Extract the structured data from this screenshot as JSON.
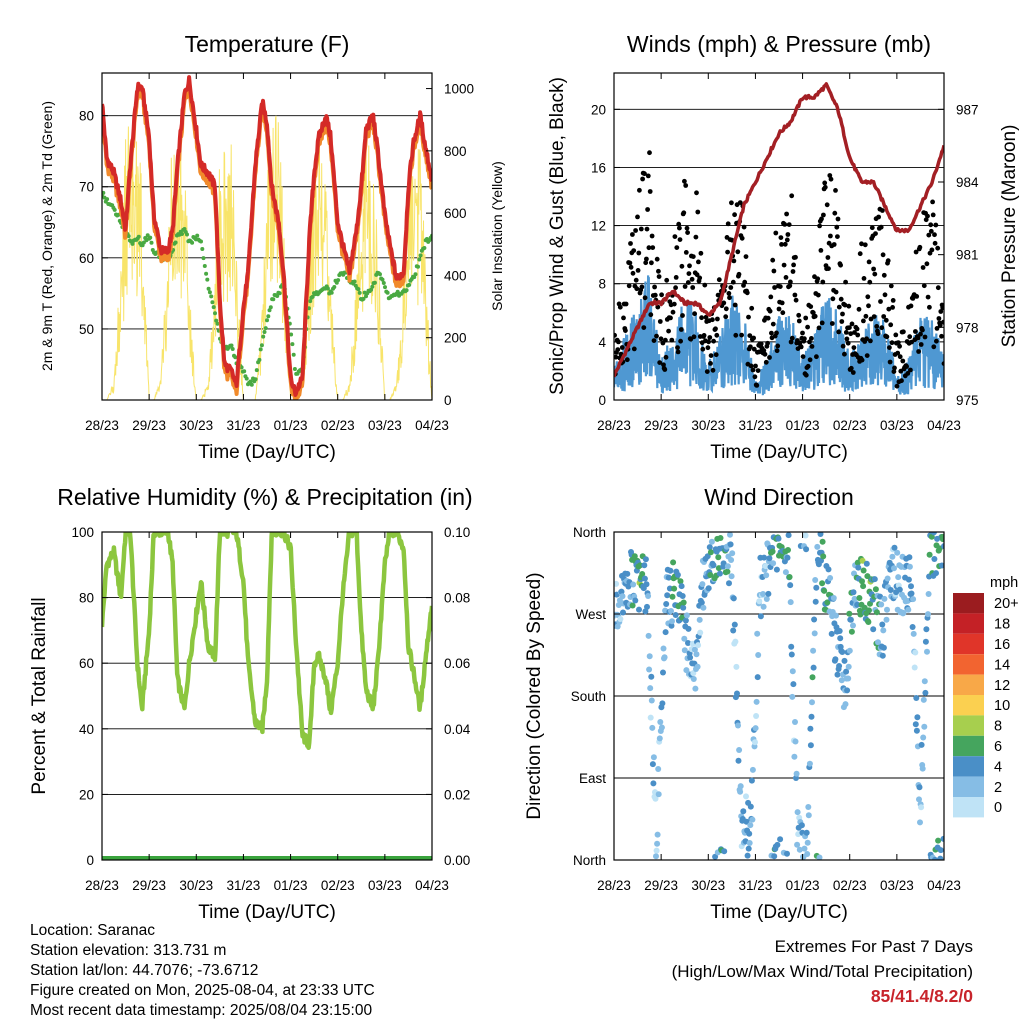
{
  "x_tick_labels": [
    "28/23",
    "29/23",
    "30/23",
    "31/23",
    "01/23",
    "02/23",
    "03/23",
    "04/23"
  ],
  "x_axis_label": "Time (Day/UTC)",
  "panels": {
    "temperature": {
      "title": "Temperature (F)",
      "ylabel_left": "2m & 9m T (Red, Orange) & 2m Td (Green)",
      "ylabel_right": "Solar Insolation (Yellow)",
      "left_ticks": [
        "50",
        "60",
        "70",
        "80"
      ],
      "right_ticks": [
        "0",
        "200",
        "400",
        "600",
        "800",
        "1000"
      ]
    },
    "winds": {
      "title": "Winds (mph) & Pressure (mb)",
      "ylabel_left": "Sonic/Prop Wind & Gust (Blue, Black)",
      "ylabel_right": "Station Pressure (Maroon)",
      "left_ticks": [
        "0",
        "4",
        "8",
        "12",
        "16",
        "20"
      ],
      "right_ticks": [
        "975",
        "978",
        "981",
        "984",
        "987"
      ]
    },
    "humidity": {
      "title": "Relative Humidity (%) & Precipitation (in)",
      "ylabel_left": "Percent & Total Rainfall",
      "left_ticks": [
        "0",
        "20",
        "40",
        "60",
        "80",
        "100"
      ],
      "right_ticks": [
        "0.00",
        "0.02",
        "0.04",
        "0.06",
        "0.08",
        "0.10"
      ]
    },
    "direction": {
      "title": "Wind Direction",
      "ylabel_left": "Direction (Colored By Speed)",
      "left_ticks": [
        "North",
        "East",
        "South",
        "West",
        "North"
      ]
    }
  },
  "legend": {
    "title": "mph",
    "labels": [
      "20+",
      "18",
      "16",
      "14",
      "12",
      "10",
      "8",
      "6",
      "4",
      "2",
      "0"
    ],
    "colors": [
      "#9b1c1f",
      "#c42126",
      "#e03529",
      "#f26430",
      "#f8a848",
      "#fbd050",
      "#a7cf4e",
      "#45a55e",
      "#4a8fc7",
      "#86bde5",
      "#bfe3f6"
    ]
  },
  "info": {
    "location": "Location: Saranac",
    "elevation": "Station elevation: 313.731 m",
    "latlon": "Station lat/lon: 44.7076; -73.6712",
    "created": "Figure created on Mon, 2025-08-04, at 23:33 UTC",
    "recent": "Most recent data timestamp: 2025/08/04 23:15:00"
  },
  "extremes": {
    "line1": "Extremes For Past 7 Days",
    "line2": "(High/Low/Max Wind/Total Precipitation)",
    "values": "85/41.4/8.2/0"
  },
  "colors": {
    "temp_2m": "#d42a27",
    "temp_9m": "#f18a2b",
    "dewpoint": "#49a942",
    "solar": "#f8e46a",
    "wind": "#4f98d2",
    "gust": "#000000",
    "pressure": "#a31f24",
    "humidity": "#8cc63f",
    "precip": "#3aa43d"
  },
  "chart_data": [
    {
      "type": "line",
      "title": "Temperature (F)",
      "xlabel": "Time (Day/UTC)",
      "ylabel": "2m & 9m T (Red, Orange) & 2m Td (Green)",
      "ylabel_right": "Solar Insolation (Yellow)",
      "ylim": [
        40,
        86
      ],
      "ylim_right": [
        0,
        1050
      ],
      "x": [
        0,
        0.1,
        0.25,
        0.4,
        0.5,
        0.6,
        0.75,
        0.85,
        1.0,
        1.1,
        1.25,
        1.4,
        1.5,
        1.6,
        1.75,
        1.85,
        2.0,
        2.1,
        2.25,
        2.4,
        2.5,
        2.6,
        2.75,
        2.85,
        3.0,
        3.1,
        3.25,
        3.4,
        3.5,
        3.6,
        3.75,
        3.85,
        4.0,
        4.1,
        4.25,
        4.4,
        4.5,
        4.6,
        4.75,
        4.85,
        5.0,
        5.1,
        5.25,
        5.4,
        5.5,
        5.6,
        5.75,
        5.85,
        6.0,
        6.1,
        6.25,
        6.4,
        6.5,
        6.6,
        6.75,
        6.85,
        7.0
      ],
      "series": [
        {
          "name": "2m & 9m T (Red, Orange)",
          "values": [
            82,
            74,
            72,
            68,
            64,
            73,
            84,
            84,
            77,
            66,
            61,
            61,
            64,
            73,
            83,
            85,
            78,
            73,
            72,
            70,
            54,
            45,
            44,
            42,
            53,
            58,
            73,
            82,
            79,
            70,
            65,
            58,
            43,
            41,
            43,
            63,
            72,
            77,
            80,
            77,
            65,
            62,
            58,
            64,
            70,
            78,
            80,
            75,
            66,
            62,
            57,
            58,
            70,
            76,
            80,
            76,
            71
          ]
        },
        {
          "name": "2m Td (Green)",
          "values": [
            69,
            68,
            67,
            65,
            64,
            62,
            63,
            62,
            63,
            61,
            60,
            60,
            61,
            63,
            64,
            62,
            63,
            62,
            56,
            52,
            49,
            47,
            48,
            45,
            44,
            42,
            43,
            48,
            51,
            54,
            55,
            57,
            50,
            44,
            44,
            54,
            55,
            55,
            56,
            55,
            57,
            58,
            57,
            56,
            54,
            55,
            56,
            58,
            56,
            54,
            55,
            55,
            56,
            57,
            60,
            62,
            63
          ]
        },
        {
          "name": "Solar Insolation (Yellow)",
          "values": [
            0,
            0,
            60,
            500,
            850,
            950,
            900,
            700,
            0,
            0,
            80,
            500,
            900,
            980,
            800,
            400,
            0,
            0,
            60,
            400,
            800,
            900,
            850,
            500,
            0,
            0,
            0,
            300,
            700,
            1000,
            900,
            600,
            0,
            0,
            80,
            500,
            800,
            900,
            700,
            400,
            0,
            0,
            60,
            400,
            750,
            900,
            800,
            500,
            0,
            0,
            60,
            400,
            750,
            900,
            800,
            500,
            0
          ]
        }
      ]
    },
    {
      "type": "line",
      "title": "Winds (mph) & Pressure (mb)",
      "xlabel": "Time (Day/UTC)",
      "ylabel": "Sonic/Prop Wind & Gust (Blue, Black)",
      "ylabel_right": "Station Pressure (Maroon)",
      "ylim": [
        0,
        22.5
      ],
      "ylim_right": [
        975,
        988.5
      ],
      "x": [
        0,
        0.25,
        0.5,
        0.75,
        1.0,
        1.25,
        1.5,
        1.75,
        2.0,
        2.25,
        2.5,
        2.75,
        3.0,
        3.25,
        3.5,
        3.75,
        4.0,
        4.25,
        4.5,
        4.75,
        5.0,
        5.25,
        5.5,
        5.75,
        6.0,
        6.25,
        6.5,
        6.75,
        7.0
      ],
      "series": [
        {
          "name": "Sonic/Prop Wind (Blue)",
          "values": [
            2,
            3,
            5,
            6,
            2,
            3,
            5,
            4,
            2,
            3,
            5,
            4,
            1,
            2,
            4,
            4,
            2,
            3,
            5,
            4,
            2,
            3,
            4,
            4,
            1,
            2,
            4,
            4,
            2
          ]
        },
        {
          "name": "Gust (Black)",
          "values": [
            4,
            8,
            12,
            15,
            6,
            9,
            13,
            12,
            5,
            8,
            13,
            11,
            3,
            6,
            11,
            13,
            4,
            8,
            14,
            12,
            5,
            9,
            10,
            12,
            3,
            6,
            10,
            13,
            6
          ]
        },
        {
          "name": "Station Pressure (Maroon)",
          "values": [
            976,
            977,
            978,
            979,
            979,
            979.5,
            979,
            979,
            978.5,
            979,
            981,
            983,
            984,
            985,
            986,
            986.5,
            987.5,
            987.5,
            988,
            987,
            985,
            984,
            984,
            983,
            982,
            982,
            983,
            984,
            985.5
          ]
        }
      ]
    },
    {
      "type": "line",
      "title": "Relative Humidity (%) & Precipitation (in)",
      "xlabel": "Time (Day/UTC)",
      "ylabel": "Percent & Total Rainfall",
      "ylim": [
        0,
        100
      ],
      "ylim_right": [
        0,
        0.1
      ],
      "x": [
        0,
        0.1,
        0.25,
        0.4,
        0.5,
        0.6,
        0.75,
        0.85,
        1.0,
        1.1,
        1.25,
        1.4,
        1.5,
        1.6,
        1.75,
        1.85,
        2.0,
        2.1,
        2.25,
        2.4,
        2.5,
        2.6,
        2.75,
        2.85,
        3.0,
        3.1,
        3.25,
        3.4,
        3.5,
        3.6,
        3.75,
        3.85,
        4.0,
        4.1,
        4.25,
        4.4,
        4.5,
        4.6,
        4.75,
        4.85,
        5.0,
        5.1,
        5.25,
        5.4,
        5.5,
        5.6,
        5.75,
        5.85,
        6.0,
        6.1,
        6.25,
        6.4,
        6.5,
        6.6,
        6.75,
        6.85,
        7.0
      ],
      "series": [
        {
          "name": "Relative Humidity",
          "values": [
            72,
            90,
            94,
            80,
            100,
            100,
            60,
            46,
            70,
            100,
            100,
            100,
            90,
            55,
            46,
            60,
            75,
            85,
            65,
            62,
            100,
            100,
            100,
            100,
            85,
            60,
            42,
            40,
            55,
            100,
            100,
            100,
            95,
            70,
            38,
            35,
            60,
            62,
            55,
            45,
            60,
            80,
            100,
            100,
            70,
            52,
            46,
            60,
            90,
            100,
            100,
            95,
            65,
            58,
            46,
            60,
            78
          ]
        },
        {
          "name": "Total Precipitation",
          "values": [
            0,
            0,
            0,
            0,
            0,
            0,
            0,
            0,
            0,
            0,
            0,
            0,
            0,
            0,
            0,
            0,
            0,
            0,
            0,
            0,
            0,
            0,
            0,
            0,
            0,
            0,
            0,
            0,
            0,
            0,
            0,
            0,
            0,
            0,
            0,
            0,
            0,
            0,
            0,
            0,
            0,
            0,
            0,
            0,
            0,
            0,
            0,
            0,
            0,
            0,
            0,
            0,
            0,
            0,
            0,
            0,
            0
          ]
        }
      ]
    },
    {
      "type": "scatter",
      "title": "Wind Direction",
      "xlabel": "Time (Day/UTC)",
      "ylabel": "Direction (Colored By Speed)",
      "ylim": [
        0,
        360
      ],
      "x": [
        0.1,
        0.3,
        0.5,
        0.7,
        0.9,
        1.1,
        1.3,
        1.5,
        1.7,
        1.9,
        2.1,
        2.3,
        2.5,
        2.7,
        2.9,
        3.1,
        3.3,
        3.5,
        3.7,
        3.9,
        4.1,
        4.3,
        4.5,
        4.7,
        4.9,
        5.1,
        5.3,
        5.5,
        5.7,
        5.9,
        6.1,
        6.3,
        6.5,
        6.7,
        6.9
      ],
      "series": [
        {
          "name": "Wind Direction",
          "values": [
            290,
            300,
            310,
            295,
            20,
            280,
            300,
            250,
            200,
            310,
            340,
            350,
            320,
            40,
            30,
            300,
            330,
            350,
            340,
            20,
            0,
            350,
            300,
            250,
            190,
            310,
            300,
            280,
            250,
            320,
            300,
            310,
            60,
            330,
            350
          ]
        },
        {
          "name": "Wind Speed (mph)",
          "values": [
            2,
            3,
            6,
            4,
            1,
            3,
            5,
            4,
            2,
            3,
            4,
            5,
            3,
            2,
            3,
            2,
            3,
            5,
            4,
            2,
            3,
            4,
            5,
            3,
            3,
            4,
            6,
            5,
            3,
            2,
            2,
            3,
            2,
            4,
            5
          ]
        }
      ]
    }
  ]
}
